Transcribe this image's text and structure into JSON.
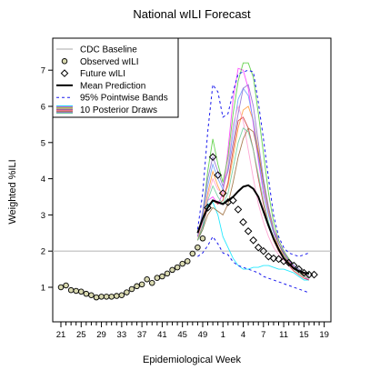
{
  "chart_data": {
    "type": "line",
    "title": "National wILI Forecast",
    "xlabel": "Epidemiological Week",
    "ylabel": "Weighted %ILI",
    "x_tick_labels": [
      "21",
      "25",
      "29",
      "33",
      "37",
      "41",
      "45",
      "49",
      "1",
      "4",
      "7",
      "11",
      "15",
      "19"
    ],
    "y_tick_labels": [
      "1",
      "2",
      "3",
      "4",
      "5",
      "6",
      "7"
    ],
    "ylim": [
      0.2,
      7.4
    ],
    "baseline": 2.0,
    "legend": {
      "position": "top-left",
      "entries": [
        {
          "label": "CDC Baseline",
          "style": "baseline"
        },
        {
          "label": "Observed wILI",
          "style": "circle"
        },
        {
          "label": "Future wILI",
          "style": "diamond"
        },
        {
          "label": "Mean Prediction",
          "style": "thick"
        },
        {
          "label": "95% Pointwise Bands",
          "style": "dashed"
        },
        {
          "label": "10 Posterior Draws",
          "style": "draws"
        }
      ]
    },
    "observed": {
      "name": "Observed wILI",
      "values": [
        1.0,
        1.05,
        0.92,
        0.9,
        0.88,
        0.82,
        0.78,
        0.72,
        0.74,
        0.74,
        0.74,
        0.76,
        0.78,
        0.86,
        0.95,
        1.03,
        1.08,
        1.22,
        1.12,
        1.26,
        1.3,
        1.38,
        1.48,
        1.55,
        1.65,
        1.72,
        1.93,
        2.1,
        2.35
      ]
    },
    "future": {
      "name": "Future wILI",
      "values": [
        3.2,
        4.6,
        4.1,
        3.6,
        3.35,
        3.4,
        3.15,
        2.8,
        2.55,
        2.3,
        2.1,
        2.0,
        1.85,
        1.8,
        1.78,
        1.72,
        1.68,
        1.6,
        1.5,
        1.4,
        1.35,
        1.35
      ]
    },
    "mean_prediction": [
      2.5,
      2.9,
      3.2,
      3.4,
      3.35,
      3.3,
      3.4,
      3.5,
      3.65,
      3.78,
      3.82,
      3.72,
      3.5,
      3.1,
      2.7,
      2.35,
      2.05,
      1.8,
      1.65,
      1.52,
      1.45,
      1.4,
      1.38
    ],
    "bands": {
      "upper": [
        2.6,
        3.6,
        5.3,
        6.6,
        6.4,
        5.7,
        5.8,
        6.4,
        6.9,
        6.95,
        7.0,
        6.95,
        6.1,
        5.1,
        4.0,
        3.0,
        2.4,
        2.1,
        1.95,
        1.9,
        1.85,
        1.9,
        1.95
      ],
      "lower": [
        1.85,
        1.95,
        2.15,
        2.4,
        2.2,
        1.95,
        1.9,
        1.7,
        1.6,
        1.55,
        1.5,
        1.45,
        1.4,
        1.3,
        1.25,
        1.2,
        1.15,
        1.1,
        1.05,
        1.0,
        0.95,
        0.9,
        0.85
      ]
    },
    "draws": [
      {
        "color": "#00e5ff",
        "values": [
          2.3,
          2.6,
          3.3,
          3.35,
          3.0,
          2.4,
          2.1,
          1.8,
          1.6,
          1.5,
          1.5,
          1.55,
          1.55,
          1.6,
          1.6,
          1.55,
          1.5,
          1.5,
          1.45,
          1.4,
          1.3,
          1.2,
          1.2
        ]
      },
      {
        "color": "#ff33ff",
        "values": [
          2.4,
          2.8,
          3.4,
          3.5,
          3.3,
          3.6,
          4.8,
          6.2,
          7.05,
          7.0,
          6.5,
          5.5,
          4.5,
          3.6,
          3.0,
          2.6,
          2.3,
          2.0,
          1.75,
          1.55,
          1.4,
          1.3,
          1.2
        ]
      },
      {
        "color": "#4dcc33",
        "values": [
          2.4,
          3.0,
          4.2,
          5.1,
          4.4,
          3.9,
          4.6,
          5.8,
          6.7,
          7.2,
          7.2,
          6.8,
          5.8,
          4.7,
          3.6,
          2.8,
          2.3,
          2.0,
          1.8,
          1.6,
          1.5,
          1.4,
          1.35
        ]
      },
      {
        "color": "#ff9933",
        "values": [
          2.3,
          2.9,
          3.6,
          4.2,
          3.8,
          3.5,
          3.8,
          4.6,
          5.4,
          5.9,
          6.0,
          5.6,
          4.8,
          3.9,
          3.1,
          2.5,
          2.1,
          1.85,
          1.65,
          1.5,
          1.4,
          1.3,
          1.25
        ]
      },
      {
        "color": "#6699ff",
        "values": [
          2.4,
          3.0,
          3.8,
          4.4,
          4.0,
          3.7,
          4.3,
          5.3,
          6.2,
          6.5,
          6.3,
          5.6,
          4.6,
          3.7,
          3.0,
          2.5,
          2.2,
          1.95,
          1.75,
          1.6,
          1.45,
          1.35,
          1.3
        ]
      },
      {
        "color": "#cc3333",
        "values": [
          2.3,
          2.7,
          3.2,
          3.4,
          3.3,
          3.4,
          3.9,
          4.8,
          5.6,
          5.7,
          5.4,
          4.8,
          4.0,
          3.3,
          2.7,
          2.3,
          2.0,
          1.8,
          1.6,
          1.45,
          1.35,
          1.25,
          1.2
        ]
      },
      {
        "color": "#ff99cc",
        "values": [
          2.4,
          2.8,
          3.5,
          4.0,
          3.7,
          3.6,
          4.4,
          5.5,
          6.0,
          5.6,
          4.8,
          4.0,
          3.3,
          2.8,
          2.4,
          2.1,
          1.9,
          1.75,
          1.6,
          1.5,
          1.4,
          1.35,
          1.3
        ]
      },
      {
        "color": "#996633",
        "values": [
          2.3,
          2.6,
          3.0,
          3.2,
          3.1,
          3.0,
          3.3,
          3.9,
          4.6,
          5.1,
          5.4,
          5.3,
          4.7,
          3.9,
          3.2,
          2.6,
          2.2,
          1.9,
          1.7,
          1.55,
          1.45,
          1.35,
          1.3
        ]
      },
      {
        "color": "#8866cc",
        "values": [
          2.4,
          3.1,
          4.0,
          4.6,
          4.2,
          3.8,
          4.2,
          5.0,
          5.8,
          6.5,
          6.6,
          6.0,
          5.0,
          4.0,
          3.2,
          2.6,
          2.2,
          1.95,
          1.75,
          1.6,
          1.5,
          1.4,
          1.3
        ]
      },
      {
        "color": "#66cc99",
        "values": [
          2.3,
          2.7,
          3.4,
          3.8,
          3.5,
          3.3,
          3.6,
          4.3,
          5.0,
          5.4,
          5.3,
          4.8,
          4.1,
          3.4,
          2.8,
          2.35,
          2.05,
          1.85,
          1.65,
          1.5,
          1.4,
          1.3,
          1.25
        ]
      }
    ]
  }
}
